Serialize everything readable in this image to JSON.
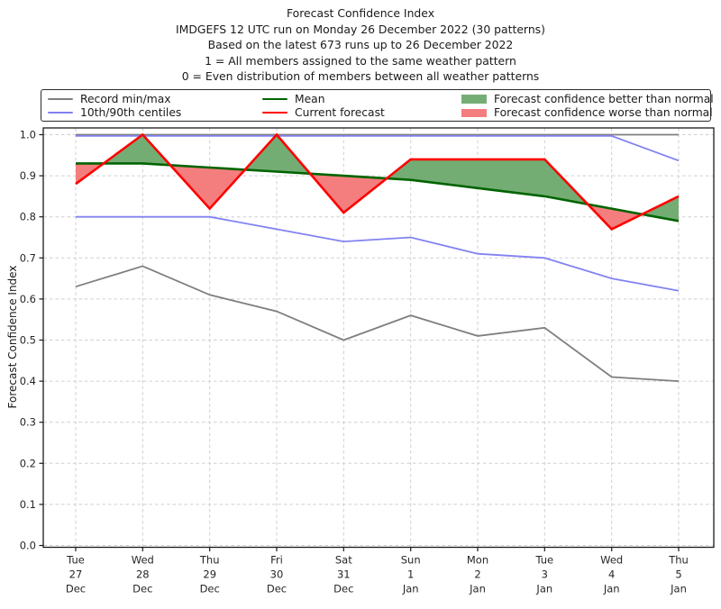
{
  "chart_data": {
    "type": "line",
    "title_lines": [
      "Forecast Confidence Index",
      "IMDGEFS 12 UTC run on Monday 26 December 2022 (30 patterns)",
      "Based on the latest 673 runs up to 26 December 2022",
      "1 = All members assigned to the same weather pattern",
      "0 = Even distribution of members between all weather patterns"
    ],
    "ylabel": "Forecast Confidence Index",
    "ylim": [
      0.0,
      1.0
    ],
    "yticks": [
      0.0,
      0.1,
      0.2,
      0.3,
      0.4,
      0.5,
      0.6,
      0.7,
      0.8,
      0.9,
      1.0
    ],
    "grid": true,
    "legend_position": "top",
    "categories": [
      {
        "day": "Tue",
        "date": "27",
        "month": "Dec"
      },
      {
        "day": "Wed",
        "date": "28",
        "month": "Dec"
      },
      {
        "day": "Thu",
        "date": "29",
        "month": "Dec"
      },
      {
        "day": "Fri",
        "date": "30",
        "month": "Dec"
      },
      {
        "day": "Sat",
        "date": "31",
        "month": "Dec"
      },
      {
        "day": "Sun",
        "date": "1",
        "month": "Jan"
      },
      {
        "day": "Mon",
        "date": "2",
        "month": "Jan"
      },
      {
        "day": "Tue",
        "date": "3",
        "month": "Jan"
      },
      {
        "day": "Wed",
        "date": "4",
        "month": "Jan"
      },
      {
        "day": "Thu",
        "date": "5",
        "month": "Jan"
      }
    ],
    "series": [
      {
        "name": "Record max",
        "color": "gray",
        "values": [
          1.0,
          1.0,
          1.0,
          1.0,
          1.0,
          1.0,
          1.0,
          1.0,
          1.0,
          1.0
        ]
      },
      {
        "name": "Record min",
        "color": "gray",
        "values": [
          0.63,
          0.68,
          0.61,
          0.57,
          0.5,
          0.56,
          0.51,
          0.53,
          0.41,
          0.4
        ]
      },
      {
        "name": "90th centile",
        "color": "blue",
        "values": [
          1.0,
          1.0,
          1.0,
          1.0,
          1.0,
          1.0,
          1.0,
          1.0,
          1.0,
          0.94
        ]
      },
      {
        "name": "10th centile",
        "color": "blue",
        "values": [
          0.8,
          0.8,
          0.8,
          0.77,
          0.74,
          0.75,
          0.71,
          0.7,
          0.65,
          0.62
        ]
      },
      {
        "name": "Mean",
        "color": "green",
        "values": [
          0.93,
          0.93,
          0.92,
          0.91,
          0.9,
          0.89,
          0.87,
          0.85,
          0.82,
          0.79
        ]
      },
      {
        "name": "Current forecast",
        "color": "red",
        "values": [
          0.88,
          1.0,
          0.82,
          1.0,
          0.81,
          0.94,
          0.94,
          0.94,
          0.77,
          0.85
        ]
      }
    ],
    "fills": {
      "better_label": "Forecast confidence better than normal",
      "worse_label": "Forecast confidence worse than normal",
      "between": [
        "Current forecast",
        "Mean"
      ]
    },
    "colors": {
      "gray": "#7f7f7f",
      "blue": "#8282f2",
      "green": "#006400",
      "red": "#ff0000",
      "fill_better": "#74ad74",
      "fill_worse": "#f47e7e",
      "grid": "#cfcfcf",
      "axis": "#1a1a1a"
    }
  },
  "legend": {
    "entries": [
      {
        "swatch": "line",
        "color": "gray",
        "label": "Record min/max"
      },
      {
        "swatch": "line",
        "color": "blue",
        "label": "10th/90th centiles"
      },
      {
        "swatch": "line",
        "color": "green",
        "label": "Mean"
      },
      {
        "swatch": "line",
        "color": "red",
        "label": "Current forecast"
      },
      {
        "swatch": "patch",
        "color": "fill_better",
        "label": "Forecast confidence better than normal"
      },
      {
        "swatch": "patch",
        "color": "fill_worse",
        "label": "Forecast confidence worse than normal"
      }
    ]
  }
}
